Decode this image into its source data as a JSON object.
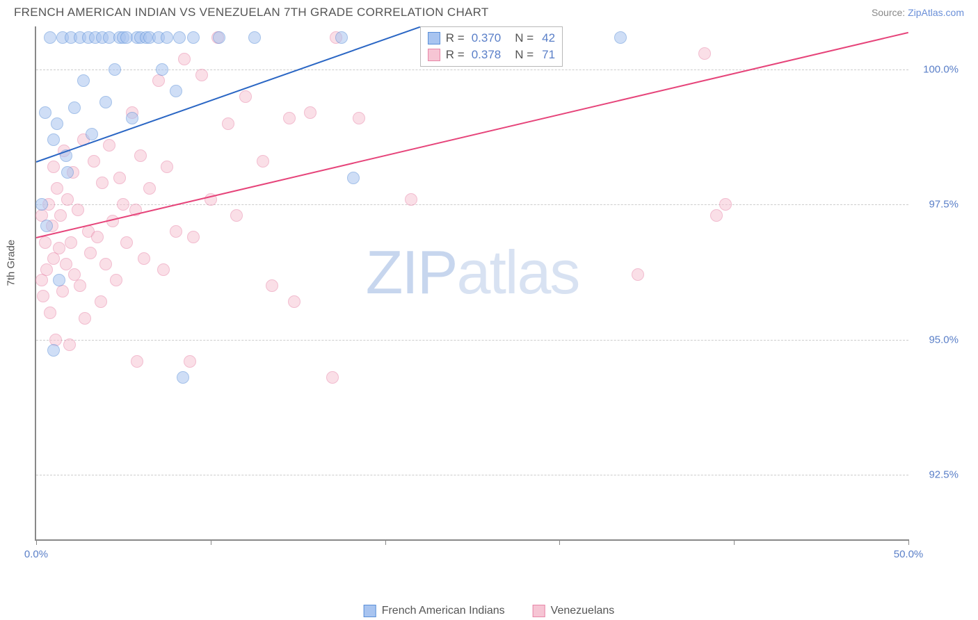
{
  "title": "FRENCH AMERICAN INDIAN VS VENEZUELAN 7TH GRADE CORRELATION CHART",
  "source_label": "Source:",
  "source_link": "ZipAtlas.com",
  "y_axis_label": "7th Grade",
  "watermark_zip": "ZIP",
  "watermark_atlas": "atlas",
  "chart": {
    "type": "scatter",
    "xlim": [
      0,
      50
    ],
    "ylim": [
      91.3,
      100.8
    ],
    "x_ticks": [
      0,
      10,
      20,
      30,
      40,
      50
    ],
    "x_tick_labels": [
      "0.0%",
      "",
      "",
      "",
      "",
      "50.0%"
    ],
    "y_ticks": [
      92.5,
      95.0,
      97.5,
      100.0
    ],
    "y_tick_labels": [
      "92.5%",
      "95.0%",
      "97.5%",
      "100.0%"
    ],
    "grid_color": "#cccccc",
    "axis_color": "#888888",
    "background_color": "#ffffff",
    "series": [
      {
        "name": "French American Indians",
        "fill_color": "#a8c4f0",
        "stroke_color": "#5a8fd8",
        "line_color": "#2a66c4",
        "marker_radius": 9,
        "fill_opacity": 0.55,
        "R": "0.370",
        "N": "42",
        "trend": {
          "x1": 0,
          "y1": 98.3,
          "x2": 22,
          "y2": 100.8
        },
        "points": [
          [
            0.3,
            97.5
          ],
          [
            0.5,
            99.2
          ],
          [
            0.6,
            97.1
          ],
          [
            0.8,
            100.6
          ],
          [
            1.0,
            98.7
          ],
          [
            1.0,
            94.8
          ],
          [
            1.2,
            99.0
          ],
          [
            1.3,
            96.1
          ],
          [
            1.5,
            100.6
          ],
          [
            1.7,
            98.4
          ],
          [
            1.8,
            98.1
          ],
          [
            2.0,
            100.6
          ],
          [
            2.2,
            99.3
          ],
          [
            2.5,
            100.6
          ],
          [
            2.7,
            99.8
          ],
          [
            3.0,
            100.6
          ],
          [
            3.2,
            98.8
          ],
          [
            3.4,
            100.6
          ],
          [
            3.8,
            100.6
          ],
          [
            4.0,
            99.4
          ],
          [
            4.2,
            100.6
          ],
          [
            4.5,
            100.0
          ],
          [
            4.8,
            100.6
          ],
          [
            5.0,
            100.6
          ],
          [
            5.2,
            100.6
          ],
          [
            5.5,
            99.1
          ],
          [
            5.8,
            100.6
          ],
          [
            6.0,
            100.6
          ],
          [
            6.3,
            100.6
          ],
          [
            6.5,
            100.6
          ],
          [
            7.0,
            100.6
          ],
          [
            7.2,
            100.0
          ],
          [
            7.5,
            100.6
          ],
          [
            8.0,
            99.6
          ],
          [
            8.2,
            100.6
          ],
          [
            8.4,
            94.3
          ],
          [
            9.0,
            100.6
          ],
          [
            10.5,
            100.6
          ],
          [
            12.5,
            100.6
          ],
          [
            17.5,
            100.6
          ],
          [
            18.2,
            98.0
          ],
          [
            33.5,
            100.6
          ]
        ]
      },
      {
        "name": "Venezuelans",
        "fill_color": "#f6c5d4",
        "stroke_color": "#e886a8",
        "line_color": "#e6447a",
        "marker_radius": 9,
        "fill_opacity": 0.55,
        "R": "0.378",
        "N": "71",
        "trend": {
          "x1": 0,
          "y1": 96.9,
          "x2": 50,
          "y2": 100.7
        },
        "points": [
          [
            0.3,
            96.1
          ],
          [
            0.3,
            97.3
          ],
          [
            0.4,
            95.8
          ],
          [
            0.5,
            96.8
          ],
          [
            0.6,
            96.3
          ],
          [
            0.7,
            97.5
          ],
          [
            0.8,
            95.5
          ],
          [
            0.9,
            97.1
          ],
          [
            1.0,
            96.5
          ],
          [
            1.0,
            98.2
          ],
          [
            1.1,
            95.0
          ],
          [
            1.2,
            97.8
          ],
          [
            1.3,
            96.7
          ],
          [
            1.4,
            97.3
          ],
          [
            1.5,
            95.9
          ],
          [
            1.6,
            98.5
          ],
          [
            1.7,
            96.4
          ],
          [
            1.8,
            97.6
          ],
          [
            1.9,
            94.9
          ],
          [
            2.0,
            96.8
          ],
          [
            2.1,
            98.1
          ],
          [
            2.2,
            96.2
          ],
          [
            2.4,
            97.4
          ],
          [
            2.5,
            96.0
          ],
          [
            2.7,
            98.7
          ],
          [
            2.8,
            95.4
          ],
          [
            3.0,
            97.0
          ],
          [
            3.1,
            96.6
          ],
          [
            3.3,
            98.3
          ],
          [
            3.5,
            96.9
          ],
          [
            3.7,
            95.7
          ],
          [
            3.8,
            97.9
          ],
          [
            4.0,
            96.4
          ],
          [
            4.2,
            98.6
          ],
          [
            4.4,
            97.2
          ],
          [
            4.6,
            96.1
          ],
          [
            4.8,
            98.0
          ],
          [
            5.0,
            97.5
          ],
          [
            5.2,
            96.8
          ],
          [
            5.5,
            99.2
          ],
          [
            5.7,
            97.4
          ],
          [
            5.8,
            94.6
          ],
          [
            6.0,
            98.4
          ],
          [
            6.2,
            96.5
          ],
          [
            6.5,
            97.8
          ],
          [
            7.0,
            99.8
          ],
          [
            7.3,
            96.3
          ],
          [
            7.5,
            98.2
          ],
          [
            8.0,
            97.0
          ],
          [
            8.5,
            100.2
          ],
          [
            8.8,
            94.6
          ],
          [
            9.0,
            96.9
          ],
          [
            9.5,
            99.9
          ],
          [
            10.0,
            97.6
          ],
          [
            10.4,
            100.6
          ],
          [
            11.0,
            99.0
          ],
          [
            11.5,
            97.3
          ],
          [
            12.0,
            99.5
          ],
          [
            13.0,
            98.3
          ],
          [
            13.5,
            96.0
          ],
          [
            14.5,
            99.1
          ],
          [
            14.8,
            95.7
          ],
          [
            15.7,
            99.2
          ],
          [
            17.0,
            94.3
          ],
          [
            17.2,
            100.6
          ],
          [
            18.5,
            99.1
          ],
          [
            21.5,
            97.6
          ],
          [
            34.5,
            96.2
          ],
          [
            38.3,
            100.3
          ],
          [
            39.0,
            97.3
          ],
          [
            39.5,
            97.5
          ]
        ]
      }
    ]
  },
  "legend": {
    "R_label": "R =",
    "N_label": "N ="
  },
  "bottom_legend": [
    "French American Indians",
    "Venezuelans"
  ]
}
